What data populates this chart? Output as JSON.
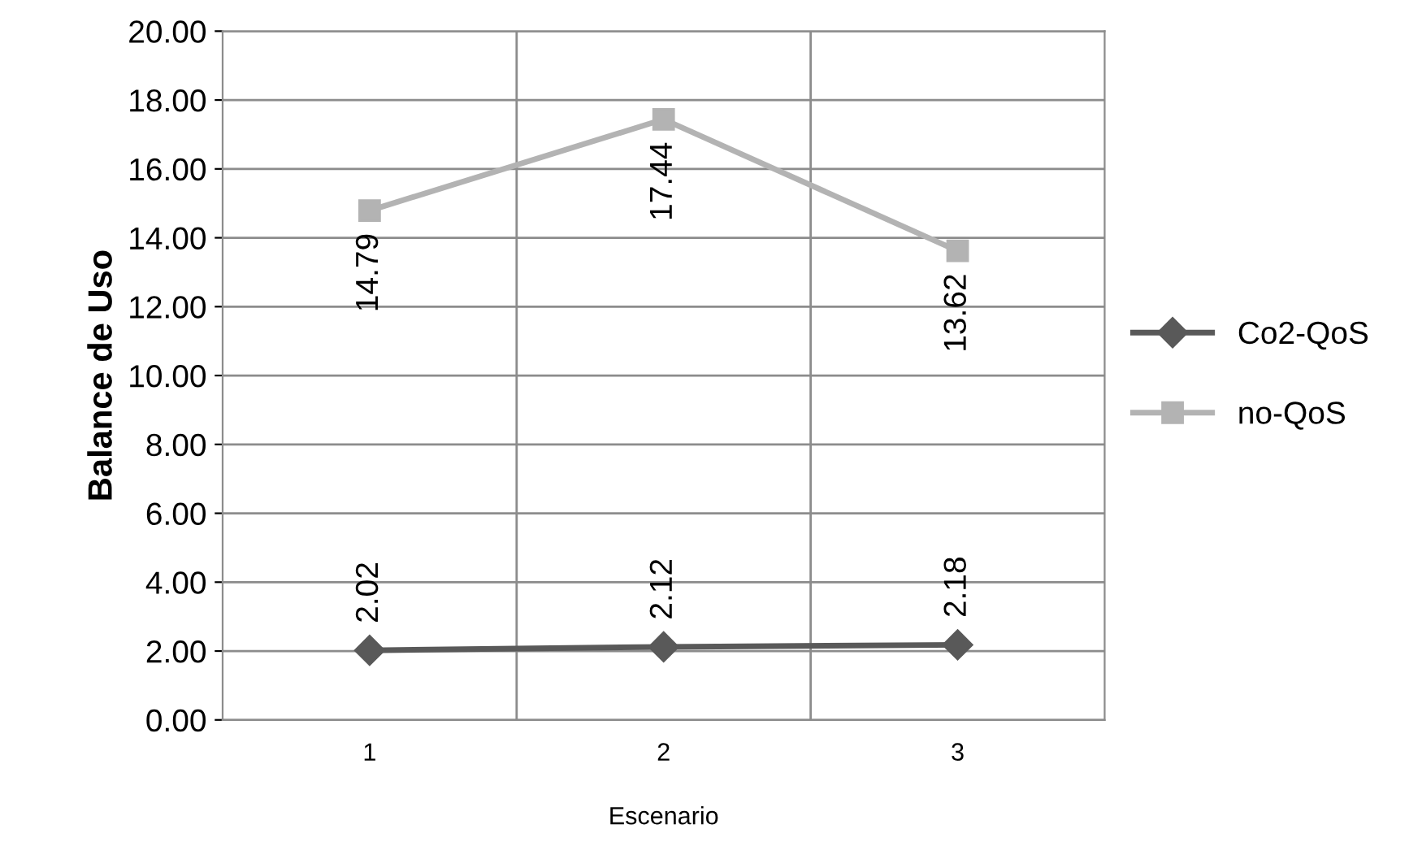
{
  "chart_data": {
    "type": "line",
    "xlabel": "Escenario",
    "ylabel": "Balance de Uso",
    "categories": [
      "1",
      "2",
      "3"
    ],
    "series": [
      {
        "name": "Co2-QoS",
        "color": "#595959",
        "marker": "diamond",
        "values": [
          2.02,
          2.12,
          2.18
        ]
      },
      {
        "name": "no-QoS",
        "color": "#b3b3b3",
        "marker": "square",
        "values": [
          14.79,
          17.44,
          13.62
        ]
      }
    ],
    "ylim": [
      0,
      20
    ],
    "yticks": [
      {
        "value": 0,
        "label": "0.00"
      },
      {
        "value": 2,
        "label": "2.00"
      },
      {
        "value": 4,
        "label": "4.00"
      },
      {
        "value": 6,
        "label": "6.00"
      },
      {
        "value": 8,
        "label": "8.00"
      },
      {
        "value": 10,
        "label": "10.00"
      },
      {
        "value": 12,
        "label": "12.00"
      },
      {
        "value": 14,
        "label": "14.00"
      },
      {
        "value": 16,
        "label": "16.00"
      },
      {
        "value": 18,
        "label": "18.00"
      },
      {
        "value": 20,
        "label": "20.00"
      }
    ],
    "grid": true,
    "legend": "right",
    "data_labels": true,
    "line_style": "solid"
  }
}
